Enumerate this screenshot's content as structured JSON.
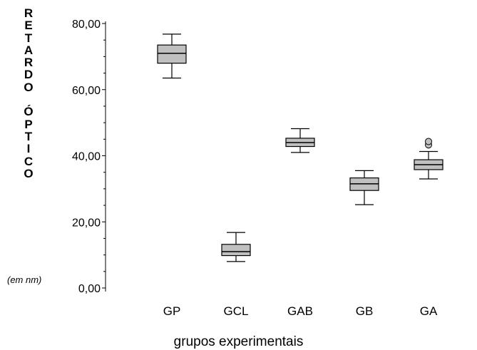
{
  "chart_data": {
    "type": "boxplot",
    "ylabel_letters": [
      "R",
      "E",
      "T",
      "A",
      "R",
      "D",
      "O",
      " ",
      "Ó",
      "P",
      "T",
      "I",
      "C",
      "O"
    ],
    "ylabel_unit": "(em nm)",
    "xlabel": "grupos experimentais",
    "ylim": [
      0,
      80
    ],
    "yticks": [
      0,
      20,
      40,
      60,
      80
    ],
    "ytick_labels": [
      "0,00",
      "20,00",
      "40,00",
      "60,00",
      "80,00"
    ],
    "box_color": "#c0c0c0",
    "categories": [
      "GP",
      "GCL",
      "GAB",
      "GB",
      "GA"
    ],
    "boxes": [
      {
        "name": "GP",
        "whisker_low": 63.5,
        "q1": 68.0,
        "median": 71.0,
        "q3": 73.5,
        "whisker_high": 76.8,
        "outliers": []
      },
      {
        "name": "GCL",
        "whisker_low": 8.0,
        "q1": 9.8,
        "median": 11.0,
        "q3": 13.2,
        "whisker_high": 16.8,
        "outliers": []
      },
      {
        "name": "GAB",
        "whisker_low": 41.0,
        "q1": 42.8,
        "median": 44.0,
        "q3": 45.3,
        "whisker_high": 48.2,
        "outliers": []
      },
      {
        "name": "GB",
        "whisker_low": 25.2,
        "q1": 29.5,
        "median": 31.5,
        "q3": 33.3,
        "whisker_high": 35.5,
        "outliers": []
      },
      {
        "name": "GA",
        "whisker_low": 33.0,
        "q1": 35.8,
        "median": 37.3,
        "q3": 38.8,
        "whisker_high": 41.3,
        "outliers": [
          43.3,
          44.3
        ]
      }
    ]
  }
}
